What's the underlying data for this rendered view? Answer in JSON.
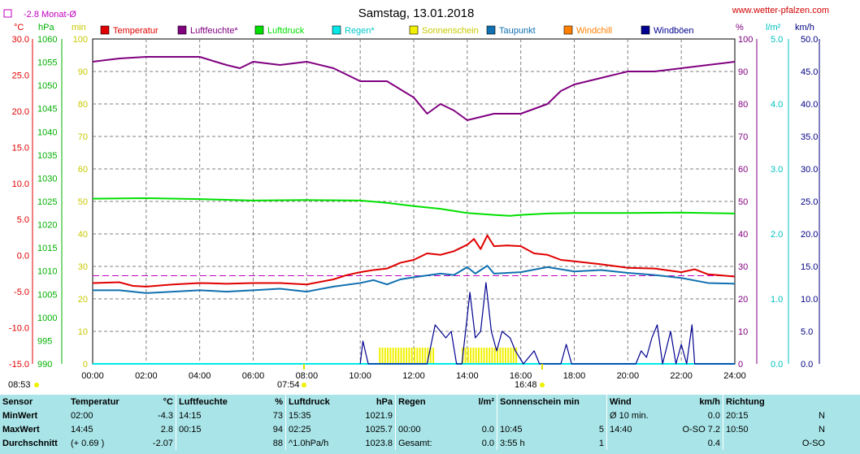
{
  "header": {
    "title": "Samstag, 13.01.2018",
    "website": "www.wetter-pfalzen.com",
    "month_avg": "-2.8 Monat-Ø"
  },
  "axes": {
    "temp_unit": "°C",
    "hpa_unit": "hPa",
    "min_unit": "min",
    "pct_unit": "%",
    "rain_unit": "l/m²",
    "kmh_unit": "km/h",
    "temp_ticks": [
      "30.0",
      "25.0",
      "20.0",
      "15.0",
      "10.0",
      "5.0",
      "0.0",
      "-5.0",
      "-10.0",
      "-15.0"
    ],
    "hpa_ticks": [
      "1060",
      "1055",
      "1050",
      "1045",
      "1040",
      "1035",
      "1030",
      "1025",
      "1020",
      "1015",
      "1010",
      "1005",
      "1000",
      "995",
      "990"
    ],
    "min_ticks": [
      "100",
      "90",
      "80",
      "70",
      "60",
      "50",
      "40",
      "30",
      "20",
      "10",
      "0"
    ],
    "pct_ticks": [
      "100",
      "90",
      "80",
      "70",
      "60",
      "50",
      "40",
      "30",
      "20",
      "10",
      "0"
    ],
    "rain_ticks": [
      "5.0",
      "4.0",
      "3.0",
      "2.0",
      "1.0",
      "0.0"
    ],
    "kmh_ticks": [
      "50.0",
      "45.0",
      "40.0",
      "35.0",
      "30.0",
      "25.0",
      "20.0",
      "15.0",
      "10.0",
      "5.0",
      "0.0"
    ],
    "time_ticks": [
      "00:00",
      "02:00",
      "04:00",
      "06:00",
      "08:00",
      "10:00",
      "12:00",
      "14:00",
      "16:00",
      "18:00",
      "20:00",
      "22:00",
      "24:00"
    ]
  },
  "sun": {
    "rise_prev": "08:53",
    "rise": "07:54",
    "set": "16:48"
  },
  "colors": {
    "temperature": "#e00000",
    "humidity": "#800080",
    "pressure": "#00e000",
    "rain": "#00e8e8",
    "sunshine": "#f0f000",
    "dewpoint": "#1070b0",
    "windchill": "#ff8000",
    "gusts": "#000090"
  },
  "chart_data": {
    "type": "line",
    "title": "Samstag, 13.01.2018",
    "x_range": [
      "00:00",
      "24:00"
    ],
    "legend": [
      {
        "name": "Temperatur",
        "color": "#e00000"
      },
      {
        "name": "Luftfeuchte*",
        "color": "#800080"
      },
      {
        "name": "Luftdruck",
        "color": "#00e000"
      },
      {
        "name": "Regen*",
        "color": "#00e8e8"
      },
      {
        "name": "Sonnenschein",
        "color": "#f0f000"
      },
      {
        "name": "Taupunkt",
        "color": "#1070b0"
      },
      {
        "name": "Windchill",
        "color": "#ff8000"
      },
      {
        "name": "Windböen",
        "color": "#000090"
      }
    ],
    "series": [
      {
        "name": "Temperatur",
        "axis": "°C",
        "ylim": [
          -15,
          30
        ],
        "points": [
          [
            0,
            -3.8
          ],
          [
            1,
            -3.7
          ],
          [
            1.5,
            -4.2
          ],
          [
            2,
            -4.3
          ],
          [
            3,
            -4.0
          ],
          [
            4,
            -3.8
          ],
          [
            5,
            -3.9
          ],
          [
            6,
            -3.8
          ],
          [
            7,
            -3.8
          ],
          [
            8,
            -4.0
          ],
          [
            9,
            -3.3
          ],
          [
            9.5,
            -2.7
          ],
          [
            10,
            -2.3
          ],
          [
            10.5,
            -2.0
          ],
          [
            11,
            -1.8
          ],
          [
            11.5,
            -1.0
          ],
          [
            12,
            -0.6
          ],
          [
            12.5,
            0.3
          ],
          [
            13,
            0.1
          ],
          [
            13.5,
            0.6
          ],
          [
            14,
            1.5
          ],
          [
            14.25,
            2.3
          ],
          [
            14.5,
            0.9
          ],
          [
            14.75,
            2.8
          ],
          [
            15,
            1.3
          ],
          [
            15.5,
            1.4
          ],
          [
            16,
            1.3
          ],
          [
            16.5,
            0.3
          ],
          [
            17,
            0.1
          ],
          [
            17.5,
            -0.6
          ],
          [
            18,
            -0.8
          ],
          [
            19,
            -1.2
          ],
          [
            20,
            -1.7
          ],
          [
            21,
            -1.8
          ],
          [
            22,
            -2.3
          ],
          [
            22.5,
            -1.9
          ],
          [
            23,
            -2.6
          ],
          [
            24,
            -2.9
          ]
        ]
      },
      {
        "name": "Luftfeuchte*",
        "axis": "%",
        "ylim": [
          0,
          100
        ],
        "points": [
          [
            0,
            93
          ],
          [
            1,
            94
          ],
          [
            2,
            94.5
          ],
          [
            4,
            94.5
          ],
          [
            5,
            92
          ],
          [
            5.5,
            91
          ],
          [
            6,
            93
          ],
          [
            7,
            92
          ],
          [
            8,
            93
          ],
          [
            9,
            91
          ],
          [
            10,
            87
          ],
          [
            11,
            87
          ],
          [
            12,
            82
          ],
          [
            12.5,
            77
          ],
          [
            13,
            80
          ],
          [
            13.5,
            78
          ],
          [
            14,
            75
          ],
          [
            14.5,
            76
          ],
          [
            15,
            77
          ],
          [
            16,
            77
          ],
          [
            17,
            80
          ],
          [
            17.5,
            84
          ],
          [
            18,
            86
          ],
          [
            19,
            88
          ],
          [
            20,
            90
          ],
          [
            21,
            90
          ],
          [
            22,
            91
          ],
          [
            23,
            92
          ],
          [
            24,
            93
          ]
        ]
      },
      {
        "name": "Luftdruck",
        "axis": "hPa",
        "ylim": [
          990,
          1060
        ],
        "points": [
          [
            0,
            1025.6
          ],
          [
            2,
            1025.7
          ],
          [
            4,
            1025.5
          ],
          [
            6,
            1025.2
          ],
          [
            8,
            1025.3
          ],
          [
            10,
            1025.2
          ],
          [
            11,
            1024.7
          ],
          [
            12,
            1024.0
          ],
          [
            13,
            1023.4
          ],
          [
            14,
            1022.5
          ],
          [
            15,
            1022.1
          ],
          [
            15.6,
            1021.9
          ],
          [
            16,
            1022.1
          ],
          [
            17,
            1022.4
          ],
          [
            18,
            1022.5
          ],
          [
            20,
            1022.5
          ],
          [
            22,
            1022.6
          ],
          [
            24,
            1022.4
          ]
        ]
      },
      {
        "name": "Taupunkt",
        "axis": "°C",
        "ylim": [
          -15,
          30
        ],
        "points": [
          [
            0,
            -4.8
          ],
          [
            1,
            -4.8
          ],
          [
            2,
            -5.2
          ],
          [
            3,
            -5.0
          ],
          [
            4,
            -4.8
          ],
          [
            5,
            -5.0
          ],
          [
            6,
            -4.8
          ],
          [
            7,
            -4.6
          ],
          [
            8,
            -5.0
          ],
          [
            9,
            -4.3
          ],
          [
            10,
            -3.8
          ],
          [
            10.5,
            -3.4
          ],
          [
            11,
            -4.0
          ],
          [
            11.5,
            -3.3
          ],
          [
            12,
            -3.0
          ],
          [
            13,
            -2.5
          ],
          [
            13.5,
            -2.7
          ],
          [
            14,
            -1.6
          ],
          [
            14.3,
            -2.5
          ],
          [
            14.75,
            -1.4
          ],
          [
            15,
            -2.5
          ],
          [
            16,
            -2.3
          ],
          [
            17,
            -1.6
          ],
          [
            18,
            -2.2
          ],
          [
            19,
            -2.0
          ],
          [
            20,
            -2.4
          ],
          [
            21,
            -2.7
          ],
          [
            22,
            -3.1
          ],
          [
            23,
            -3.8
          ],
          [
            24,
            -3.9
          ]
        ]
      },
      {
        "name": "Windböen",
        "axis": "km/h",
        "ylim": [
          0,
          50
        ],
        "points": [
          [
            10,
            0
          ],
          [
            10.1,
            3.5
          ],
          [
            10.3,
            0
          ],
          [
            12.5,
            0
          ],
          [
            12.8,
            6
          ],
          [
            13,
            5
          ],
          [
            13.2,
            4
          ],
          [
            13.4,
            5
          ],
          [
            13.6,
            0
          ],
          [
            13.8,
            0
          ],
          [
            14.1,
            11
          ],
          [
            14.3,
            4
          ],
          [
            14.5,
            5
          ],
          [
            14.7,
            12.5
          ],
          [
            14.9,
            5
          ],
          [
            15.1,
            2
          ],
          [
            15.3,
            5
          ],
          [
            15.6,
            4
          ],
          [
            15.8,
            2
          ],
          [
            16.1,
            0
          ],
          [
            16.5,
            2
          ],
          [
            16.7,
            0
          ],
          [
            17.5,
            0
          ],
          [
            17.7,
            3
          ],
          [
            17.9,
            0
          ],
          [
            20.3,
            0
          ],
          [
            20.5,
            2
          ],
          [
            20.7,
            1
          ],
          [
            20.9,
            4
          ],
          [
            21.1,
            6
          ],
          [
            21.3,
            0
          ],
          [
            21.6,
            5
          ],
          [
            21.8,
            0
          ],
          [
            22.0,
            3
          ],
          [
            22.2,
            0
          ],
          [
            22.4,
            6
          ],
          [
            22.5,
            0
          ],
          [
            24,
            0
          ]
        ]
      },
      {
        "name": "Sonnenschein",
        "axis": "min",
        "ylim": [
          0,
          100
        ],
        "intervals": [
          [
            10.7,
            12.0
          ],
          [
            12.0,
            12.7
          ],
          [
            13.8,
            15.8
          ]
        ]
      },
      {
        "name": "Regen*",
        "axis": "l/m²",
        "ylim": [
          0,
          5
        ],
        "points": [
          [
            0,
            0
          ],
          [
            24,
            0
          ]
        ]
      }
    ],
    "reference_line": {
      "label": "-2.8 Monat-Ø",
      "value": -2.8,
      "axis": "°C"
    }
  },
  "stats": {
    "headers": [
      "Sensor",
      "Temperatur",
      "°C",
      "Luftfeuchte",
      "%",
      "Luftdruck",
      "hPa",
      "Regen",
      "l/m²",
      "Sonnenschein min",
      "",
      "Wind",
      "km/h",
      "Richtung",
      ""
    ],
    "rows": [
      [
        "MinWert",
        "02:00",
        "-4.3",
        "14:15",
        "73",
        "15:35",
        "1021.9",
        "",
        "",
        "",
        "",
        "Ø 10 min.",
        "0.0",
        "20:15",
        "N"
      ],
      [
        "MaxWert",
        "14:45",
        "2.8",
        "00:15",
        "94",
        "02:25",
        "1025.7",
        "00:00",
        "0.0",
        "10:45",
        "5",
        "14:40",
        "O-SO 7.2",
        "10:50",
        "N"
      ],
      [
        "Durchschnitt",
        "(+ 0.69 )",
        "-2.07",
        "",
        "88",
        "^1.0hPa/h",
        "1023.8",
        "Gesamt:",
        "0.0",
        "3:55 h",
        "1",
        "",
        "0.4",
        "",
        "O-SO"
      ]
    ]
  }
}
